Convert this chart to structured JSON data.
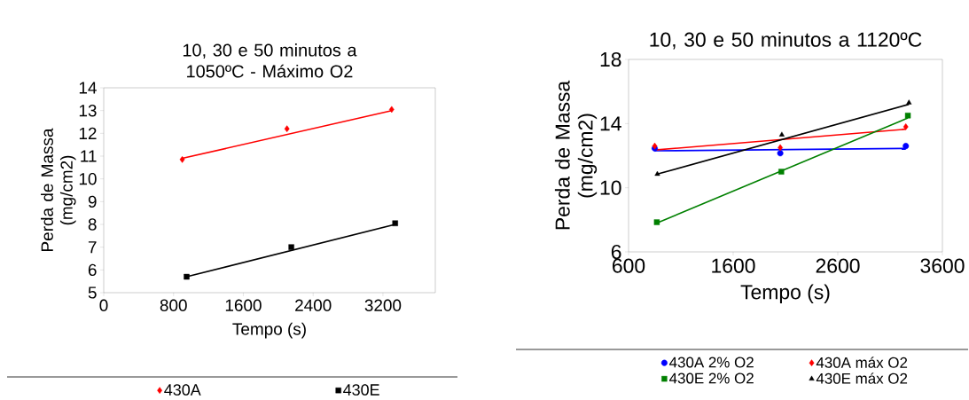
{
  "chart_data": [
    {
      "type": "scatter",
      "title": "10, 30 e 50 minutos a 1050ºC - Máximo O2",
      "xlabel": "Tempo (s)",
      "ylabel": "Perda de Massa (mg/cm2)",
      "xlim": [
        0,
        3800
      ],
      "xticks": [
        0,
        800,
        1600,
        2400,
        3200
      ],
      "ylim": [
        5,
        14
      ],
      "yticks": [
        5,
        6,
        7,
        8,
        9,
        10,
        11,
        12,
        13,
        14
      ],
      "legend": "bottom",
      "series": [
        {
          "name": "430A",
          "marker": "diamond",
          "color": "#ff0000",
          "x": [
            900,
            2100,
            3300
          ],
          "values": [
            10.85,
            12.2,
            13.05
          ]
        },
        {
          "name": "430E",
          "marker": "square",
          "color": "#000000",
          "x": [
            950,
            2150,
            3340
          ],
          "values": [
            5.7,
            7.0,
            8.05
          ]
        },
        {
          "type": "line",
          "color": "#ff0000",
          "x": [
            900,
            3300
          ],
          "values": [
            10.9,
            13.0
          ]
        },
        {
          "type": "line",
          "color": "#000000",
          "x": [
            950,
            3340
          ],
          "values": [
            5.7,
            8.0
          ]
        }
      ]
    },
    {
      "type": "scatter",
      "title": "10, 30 e 50 minutos a 1120ºC",
      "xlabel": "Tempo (s)",
      "ylabel": "Perda de Massa (mg/cm2)",
      "xlim": [
        600,
        3600
      ],
      "xticks": [
        600,
        1600,
        2600,
        3600
      ],
      "ylim": [
        6,
        18
      ],
      "yticks": [
        6,
        10,
        14,
        18
      ],
      "legend": "bottom",
      "series": [
        {
          "name": "430A 2% O2",
          "marker": "circle",
          "color": "#0000ff",
          "x": [
            850,
            2050,
            3250
          ],
          "values": [
            12.45,
            12.15,
            12.6
          ]
        },
        {
          "name": "430A máx O2",
          "marker": "diamond",
          "color": "#ff0000",
          "x": [
            850,
            2050,
            3250
          ],
          "values": [
            12.6,
            12.5,
            13.8
          ]
        },
        {
          "name": "430E 2% O2",
          "marker": "square",
          "color": "#008000",
          "x": [
            870,
            2060,
            3270
          ],
          "values": [
            7.85,
            11.0,
            14.5
          ]
        },
        {
          "name": "430E máx O2",
          "marker": "triangle",
          "color": "#000000",
          "x": [
            875,
            2065,
            3280
          ],
          "values": [
            10.85,
            13.3,
            15.3
          ]
        },
        {
          "type": "line",
          "color": "#0000ff",
          "x": [
            850,
            3250
          ],
          "values": [
            12.3,
            12.45
          ]
        },
        {
          "type": "line",
          "color": "#ff0000",
          "x": [
            850,
            3250
          ],
          "values": [
            12.35,
            13.65
          ]
        },
        {
          "type": "line",
          "color": "#008000",
          "x": [
            870,
            3270
          ],
          "values": [
            7.8,
            14.35
          ]
        },
        {
          "type": "line",
          "color": "#000000",
          "x": [
            875,
            3280
          ],
          "values": [
            10.85,
            15.2
          ]
        }
      ]
    }
  ]
}
